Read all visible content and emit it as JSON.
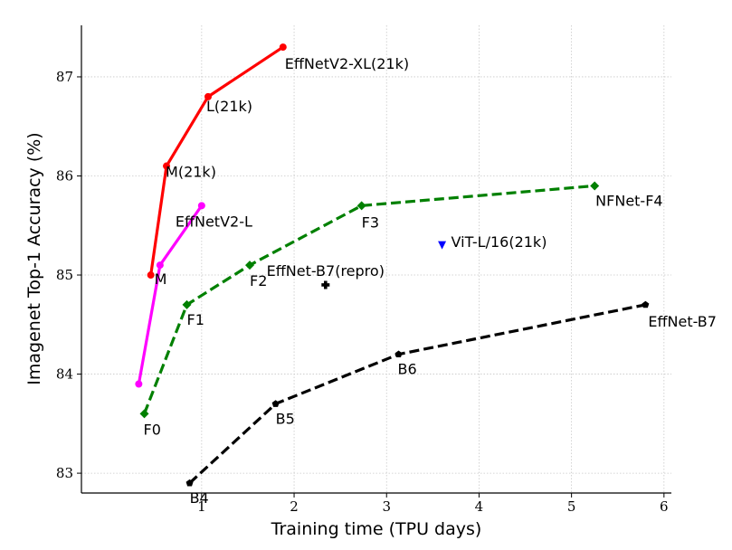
{
  "chart_data": {
    "type": "line",
    "xlabel": "Training time (TPU days)",
    "ylabel": "Imagenet Top-1 Accuracy (%)",
    "xlim": [
      -0.3,
      6.08
    ],
    "ylim": [
      82.8,
      87.52
    ],
    "xticks": [
      1,
      2,
      3,
      4,
      5,
      6
    ],
    "yticks": [
      83,
      84,
      85,
      86,
      87
    ],
    "grid": true,
    "series": [
      {
        "color": "#ff0000",
        "line_style": "solid",
        "marker": "circle",
        "points": [
          {
            "x": 0.45,
            "y": 85.0,
            "label": "M"
          },
          {
            "x": 0.62,
            "y": 86.1,
            "label": "M(21k)"
          },
          {
            "x": 1.07,
            "y": 86.8,
            "label": "L(21k)"
          },
          {
            "x": 1.88,
            "y": 87.3,
            "label": "EffNetV2-XL(21k)"
          }
        ]
      },
      {
        "color": "#ff00ff",
        "line_style": "solid",
        "marker": "circle",
        "points": [
          {
            "x": 0.32,
            "y": 83.9,
            "label": ""
          },
          {
            "x": 0.55,
            "y": 85.1,
            "label": ""
          },
          {
            "x": 1.0,
            "y": 85.7,
            "label": "EffNetV2-L"
          }
        ]
      },
      {
        "color": "#008000",
        "line_style": "dashed",
        "marker": "diamond",
        "points": [
          {
            "x": 0.38,
            "y": 83.6,
            "label": "F0"
          },
          {
            "x": 0.84,
            "y": 84.7,
            "label": "F1"
          },
          {
            "x": 1.52,
            "y": 85.1,
            "label": "F2"
          },
          {
            "x": 2.73,
            "y": 85.7,
            "label": "F3"
          },
          {
            "x": 5.25,
            "y": 85.9,
            "label": "NFNet-F4"
          }
        ]
      },
      {
        "color": "#000000",
        "line_style": "dashed",
        "marker": "pentagon",
        "points": [
          {
            "x": 0.87,
            "y": 82.9,
            "label": "B4"
          },
          {
            "x": 1.8,
            "y": 83.7,
            "label": "B5"
          },
          {
            "x": 3.13,
            "y": 84.2,
            "label": "B6"
          },
          {
            "x": 5.8,
            "y": 84.7,
            "label": "EffNet-B7"
          }
        ]
      },
      {
        "color": "#000000",
        "line_style": "none",
        "marker": "plus",
        "points": [
          {
            "x": 2.34,
            "y": 84.9,
            "label": "EffNet-B7(repro)"
          }
        ]
      },
      {
        "color": "#0000ff",
        "line_style": "none",
        "marker": "triangle-down",
        "points": [
          {
            "x": 3.6,
            "y": 85.3,
            "label": "ViT-L/16(21k)"
          }
        ]
      }
    ]
  }
}
